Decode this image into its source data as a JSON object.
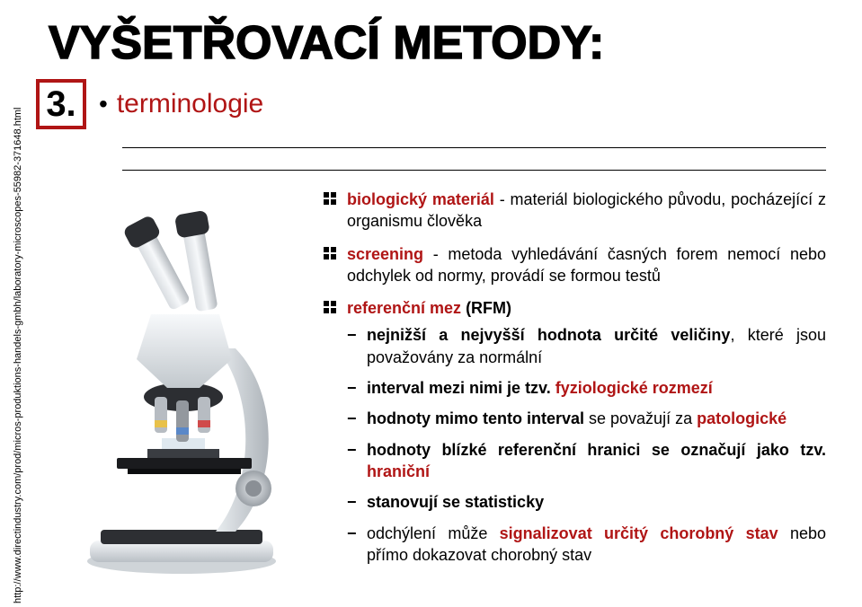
{
  "title": "VYŠETŘOVACÍ METODY:",
  "section": {
    "number": "3.",
    "label": "terminologie",
    "bullet": "•"
  },
  "url": "http://www.directindustry.com/prod/micros-produktions-handels-gmbh/laboratory-microscopes-55982-371648.html",
  "colors": {
    "accent": "#b01515",
    "text": "#000000",
    "bg": "#ffffff"
  },
  "bullets": [
    {
      "parts": [
        {
          "t": "biologický materiál",
          "red": true,
          "b": true
        },
        {
          "t": " - materiál biologického původu, pocházející z organismu člověka"
        }
      ]
    },
    {
      "parts": [
        {
          "t": "screening",
          "red": true,
          "b": true
        },
        {
          "t": " - metoda vyhledávání časných forem nemocí nebo odchylek od normy, provádí se formou testů"
        }
      ]
    },
    {
      "parts": [
        {
          "t": "referenční mez",
          "red": true,
          "b": true
        },
        {
          "t": " (RFM)",
          "b": true
        }
      ],
      "sub": [
        {
          "parts": [
            {
              "t": "nejnižší a nejvyšší hodnota určité veličiny",
              "b": true
            },
            {
              "t": ", které jsou považovány za normální"
            }
          ]
        },
        {
          "parts": [
            {
              "t": "interval mezi nimi je tzv. ",
              "b": true
            },
            {
              "t": "fyziologické rozmezí",
              "red": true,
              "b": true
            }
          ]
        },
        {
          "parts": [
            {
              "t": "hodnoty mimo tento interval",
              "b": true
            },
            {
              "t": " se považují za "
            },
            {
              "t": "patologické",
              "red": true,
              "b": true
            }
          ]
        },
        {
          "parts": [
            {
              "t": "hodnoty blízké referenční hranici se označují jako tzv. ",
              "b": true
            },
            {
              "t": "hraniční",
              "red": true,
              "b": true
            }
          ]
        },
        {
          "parts": [
            {
              "t": "stanovují se statisticky",
              "b": true
            }
          ]
        },
        {
          "parts": [
            {
              "t": "odchýlení může "
            },
            {
              "t": "signalizovat určitý chorobný stav",
              "red": true,
              "b": true
            },
            {
              "t": " nebo přímo dokazovat chorobný stav"
            }
          ]
        }
      ]
    }
  ]
}
